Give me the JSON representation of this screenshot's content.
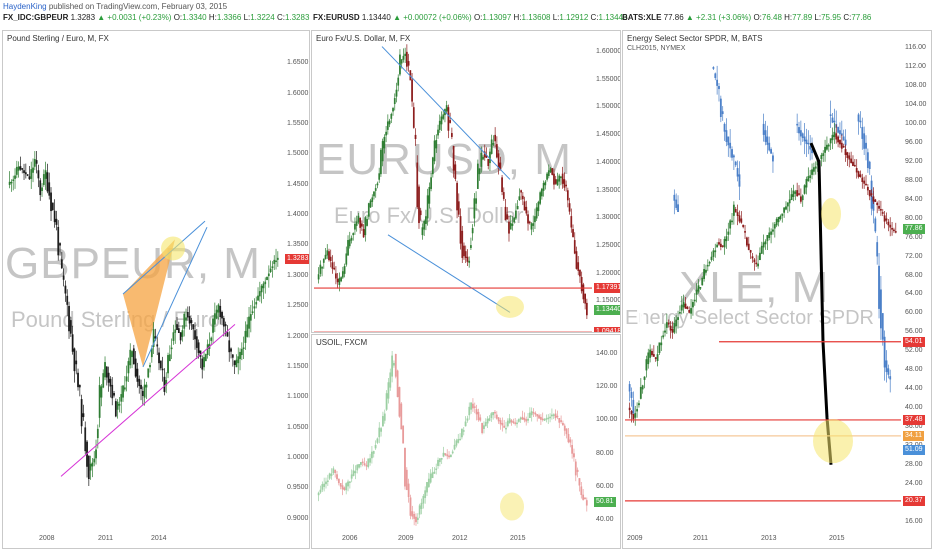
{
  "header": {
    "author": "HaydenKing",
    "published": "published on TradingView.com, February 03, 2015"
  },
  "quotes": [
    {
      "symbol": "FX_IDC:GBPEUR",
      "last": "1.3283",
      "change": "▲ +0.0031 (+0.23%)",
      "o": "1.3340",
      "h": "1.3366",
      "l": "1.3224",
      "c": "1.3283"
    },
    {
      "symbol": "FX:EURUSD",
      "last": "1.13440",
      "change": "▲ +0.00072 (+0.06%)",
      "o": "1.13097",
      "h": "1.13608",
      "l": "1.12912",
      "c": "1.13440"
    },
    {
      "symbol": "BATS:XLE",
      "last": "77.86",
      "change": "▲ +2.31 (+3.06%)",
      "o": "76.48",
      "h": "77.89",
      "l": "75.95",
      "c": "77.86"
    }
  ],
  "panels": {
    "gbp": {
      "title": "Pound Sterling / Euro, M, FX",
      "wm1": "GBPEUR, M",
      "wm2": "Pound Sterling / Euro"
    },
    "eur": {
      "title": "Euro Fx/U.S. Dollar, M, FX",
      "wm1": "EURUSD, M",
      "wm2": "Euro Fx/U.S. Dollar"
    },
    "oil": {
      "title": "USOIL, FXCM"
    },
    "xle": {
      "title": "Energy Select Sector SPDR, M, BATS",
      "subtitle": "CLH2015, NYMEX",
      "wm1": "XLE, M",
      "wm2": "Energy Select Sector SPDR"
    }
  },
  "colors": {
    "up": "#2e7d32",
    "down": "#1a1a1a",
    "red": "#e53935",
    "blue": "#4a90d9",
    "magenta": "#d633d6",
    "ellipse": "#f5e66b",
    "orange": "#f5a340"
  },
  "chart_data": [
    {
      "type": "candlestick",
      "id": "gbp",
      "title": "Pound Sterling / Euro, M, FX",
      "y_ticks": [
        "1.6500",
        "1.6000",
        "1.5500",
        "1.5000",
        "1.4500",
        "1.4000",
        "1.3500",
        "1.3000",
        "1.2500",
        "1.2000",
        "1.1500",
        "1.1000",
        "1.0500",
        "1.0000",
        "0.9500",
        "0.9000"
      ],
      "x_ticks": [
        "2008",
        "2011",
        "2014"
      ],
      "ylim": [
        0.88,
        1.67
      ],
      "last_price_label": "1.3283",
      "path": [
        1.45,
        1.46,
        1.48,
        1.47,
        1.46,
        1.49,
        1.44,
        1.47,
        1.42,
        1.38,
        1.3,
        1.25,
        1.18,
        1.12,
        1.05,
        0.98,
        1.0,
        1.1,
        1.15,
        1.12,
        1.08,
        1.1,
        1.14,
        1.18,
        1.13,
        1.1,
        1.15,
        1.2,
        1.16,
        1.12,
        1.18,
        1.22,
        1.2,
        1.24,
        1.22,
        1.19,
        1.15,
        1.18,
        1.22,
        1.25,
        1.22,
        1.18,
        1.15,
        1.17,
        1.2,
        1.24,
        1.26,
        1.28,
        1.3,
        1.32,
        1.33
      ]
    },
    {
      "type": "candlestick",
      "id": "eur",
      "title": "Euro Fx/U.S. Dollar, M, FX",
      "y_ticks": [
        "1.60000",
        "1.55000",
        "1.50000",
        "1.45000",
        "1.40000",
        "1.35000",
        "1.30000",
        "1.25000",
        "1.20000",
        "1.15000"
      ],
      "x_ticks": [
        "2006",
        "2009",
        "2012",
        "2015"
      ],
      "ylim": [
        1.1,
        1.62
      ],
      "levels": [
        "1.17391",
        "1.09418"
      ],
      "last_price_label": "1.13440",
      "path": [
        1.19,
        1.22,
        1.24,
        1.21,
        1.18,
        1.2,
        1.25,
        1.28,
        1.3,
        1.27,
        1.32,
        1.35,
        1.38,
        1.45,
        1.48,
        1.52,
        1.58,
        1.6,
        1.55,
        1.4,
        1.27,
        1.3,
        1.38,
        1.45,
        1.48,
        1.5,
        1.43,
        1.33,
        1.25,
        1.22,
        1.3,
        1.38,
        1.42,
        1.4,
        1.45,
        1.4,
        1.32,
        1.28,
        1.3,
        1.35,
        1.32,
        1.28,
        1.3,
        1.34,
        1.37,
        1.39,
        1.36,
        1.38,
        1.35,
        1.28,
        1.22,
        1.18,
        1.13
      ]
    },
    {
      "type": "candlestick",
      "id": "oil",
      "title": "USOIL, FXCM",
      "y_ticks": [
        "140.00",
        "120.00",
        "100.00",
        "80.00",
        "60.00",
        "40.00"
      ],
      "x_ticks": [
        "2006",
        "2009",
        "2012",
        "2015"
      ],
      "ylim": [
        32,
        148
      ],
      "last_price_label": "50.81",
      "path": [
        55,
        60,
        65,
        70,
        62,
        58,
        65,
        70,
        75,
        72,
        80,
        90,
        100,
        120,
        140,
        110,
        70,
        45,
        40,
        50,
        60,
        68,
        75,
        80,
        78,
        85,
        90,
        100,
        110,
        105,
        95,
        100,
        105,
        100,
        95,
        100,
        98,
        102,
        100,
        105,
        103,
        100,
        102,
        104,
        100,
        95,
        85,
        70,
        55,
        50
      ]
    },
    {
      "type": "candlestick",
      "id": "xle",
      "title": "Energy Select Sector SPDR, M, BATS",
      "subtitle": "CLH2015, NYMEX",
      "y_ticks": [
        "116.00",
        "112.00",
        "108.00",
        "104.00",
        "100.00",
        "96.00",
        "92.00",
        "88.00",
        "84.00",
        "80.00",
        "76.00",
        "72.00",
        "68.00",
        "64.00",
        "60.00",
        "56.00",
        "52.00",
        "48.00",
        "44.00",
        "40.00",
        "36.00",
        "32.00",
        "28.00",
        "24.00",
        "20.00",
        "16.00"
      ],
      "x_ticks": [
        "2009",
        "2011",
        "2013",
        "2015"
      ],
      "ylim": [
        14,
        118
      ],
      "levels": [
        "54.01",
        "37.48",
        "34.11",
        "20.37"
      ],
      "last_price_label": "77.86",
      "extra_label": "51.09",
      "path": [
        40,
        38,
        42,
        48,
        52,
        50,
        55,
        58,
        56,
        60,
        62,
        60,
        64,
        66,
        70,
        72,
        75,
        74,
        78,
        82,
        80,
        76,
        72,
        70,
        74,
        76,
        78,
        80,
        82,
        84,
        86,
        84,
        88,
        90,
        92,
        94,
        96,
        98,
        96,
        94,
        92,
        90,
        88,
        86,
        84,
        82,
        80,
        78,
        77
      ],
      "oil_path": [
        45,
        40,
        55,
        65,
        70,
        75,
        78,
        80,
        85,
        82,
        88,
        95,
        100,
        105,
        110,
        112,
        108,
        100,
        96,
        92,
        88,
        90,
        95,
        98,
        100,
        96,
        92,
        94,
        96,
        98,
        100,
        98,
        96,
        94,
        98,
        100,
        102,
        100,
        98,
        96,
        100,
        102,
        98,
        92,
        80,
        65,
        50,
        45,
        48
      ]
    }
  ]
}
